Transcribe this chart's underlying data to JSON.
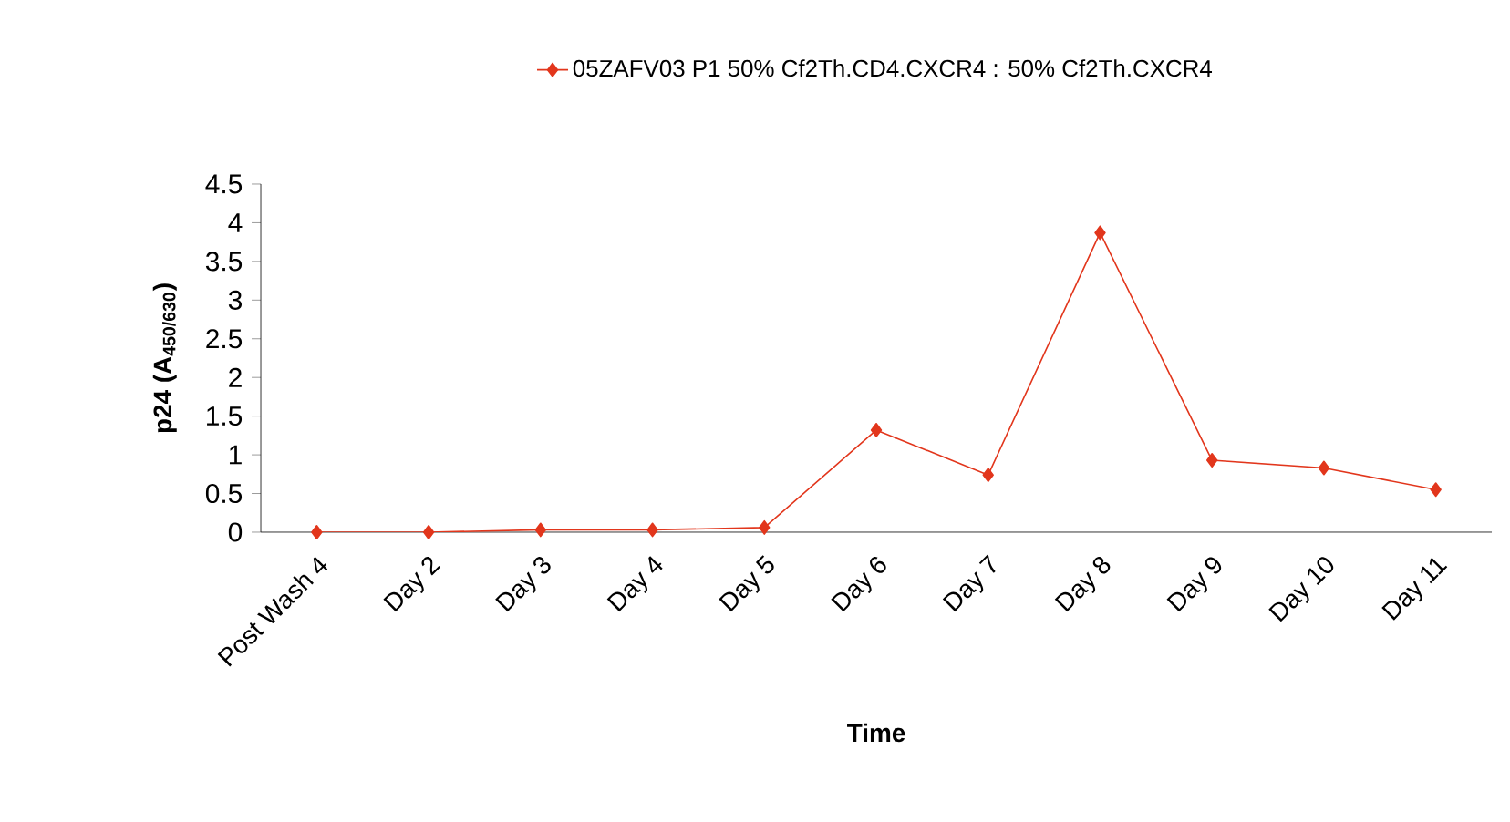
{
  "chart_data": {
    "type": "line",
    "xlabel": "Time",
    "ylabel": "p24 (A$_{450/630}$)",
    "categories": [
      "Post Wash 4",
      "Day 2",
      "Day 3",
      "Day 4",
      "Day 5",
      "Day 6",
      "Day 7",
      "Day 8",
      "Day 9",
      "Day 10",
      "Day 11"
    ],
    "series": [
      {
        "name": "05ZAFV03 P1 50% Cf2Th.CD4.CXCR4 : 50% Cf2Th.CXCR4",
        "color": "#e2361c",
        "values": [
          0,
          0,
          0.03,
          0.03,
          0.06,
          1.32,
          0.74,
          3.87,
          0.93,
          0.83,
          0.55
        ]
      }
    ],
    "ylim": [
      0,
      4.5
    ],
    "yticks": [
      0,
      0.5,
      1,
      1.5,
      2,
      2.5,
      3,
      3.5,
      4,
      4.5
    ],
    "legend": "top",
    "marker": "diamond",
    "line_style": "solid",
    "grid": false
  }
}
